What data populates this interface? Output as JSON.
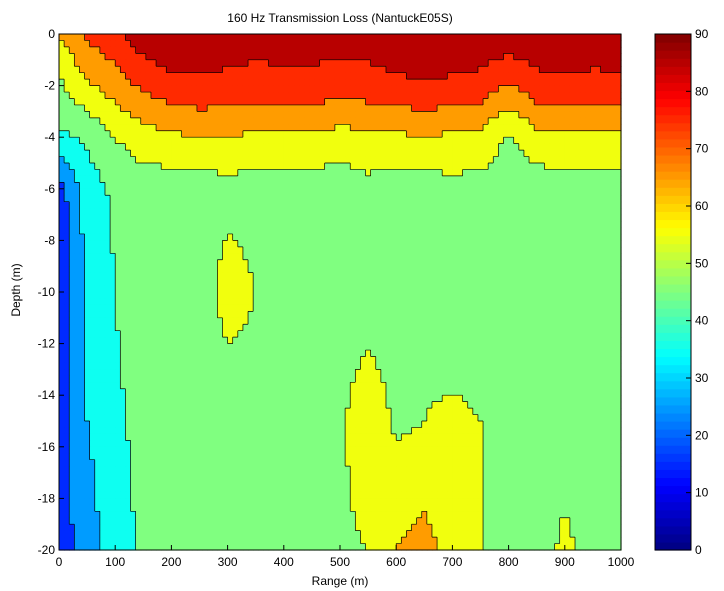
{
  "chart_data": {
    "type": "heatmap",
    "title": "160 Hz Transmission Loss (NantuckE05S)",
    "xlabel": "Range (m)",
    "ylabel": "Depth (m)",
    "xlim": [
      0,
      1000
    ],
    "ylim": [
      -20,
      0
    ],
    "x_ticks": [
      0,
      100,
      200,
      300,
      400,
      500,
      600,
      700,
      800,
      900,
      1000
    ],
    "y_ticks": [
      0,
      -2,
      -4,
      -6,
      -8,
      -10,
      -12,
      -14,
      -16,
      -18,
      -20
    ],
    "colorbar": {
      "range": [
        0,
        90
      ],
      "ticks": [
        0,
        10,
        20,
        30,
        40,
        50,
        60,
        70,
        80,
        90
      ],
      "colormap": "jet"
    },
    "contour_levels": [
      10,
      20,
      30,
      40,
      50,
      60,
      70,
      80
    ],
    "range_samples_m": [
      0,
      50,
      100,
      150,
      200,
      250,
      300,
      350,
      400,
      450,
      500,
      550,
      600,
      650,
      700,
      750,
      800,
      850,
      900,
      950,
      1000
    ],
    "depth_profiles": [
      {
        "depth_m": 0,
        "values": [
          60,
          72,
          77,
          86,
          88,
          88,
          86,
          84,
          85,
          85,
          84,
          85,
          86,
          88,
          88,
          86,
          88,
          86,
          88,
          86,
          86
        ]
      },
      {
        "depth_m": -2,
        "values": [
          48,
          58,
          65,
          72,
          77,
          78,
          77,
          76,
          77,
          77,
          75,
          76,
          78,
          79,
          78,
          77,
          68,
          77,
          78,
          77,
          78
        ]
      },
      {
        "depth_m": -4,
        "values": [
          38,
          42,
          50,
          56,
          58,
          60,
          60,
          58,
          58,
          58,
          56,
          57,
          58,
          60,
          58,
          57,
          48,
          57,
          58,
          57,
          58
        ]
      },
      {
        "depth_m": -6,
        "values": [
          15,
          35,
          42,
          45,
          44,
          44,
          46,
          45,
          44,
          45,
          44,
          47,
          45,
          44,
          47,
          46,
          46,
          44,
          46,
          46,
          46
        ]
      },
      {
        "depth_m": -10,
        "values": [
          12,
          32,
          40,
          48,
          47,
          42,
          56,
          50,
          42,
          44,
          44,
          44,
          44,
          47,
          43,
          44,
          46,
          44,
          45,
          46,
          46
        ]
      },
      {
        "depth_m": -15,
        "values": [
          15,
          30,
          38,
          43,
          45,
          42,
          42,
          44,
          40,
          44,
          48,
          58,
          48,
          50,
          52,
          50,
          47,
          44,
          46,
          47,
          46
        ]
      },
      {
        "depth_m": -20,
        "values": [
          15,
          25,
          35,
          42,
          44,
          46,
          44,
          42,
          44,
          46,
          48,
          50,
          60,
          64,
          56,
          50,
          47,
          46,
          52,
          46,
          46
        ]
      }
    ]
  }
}
